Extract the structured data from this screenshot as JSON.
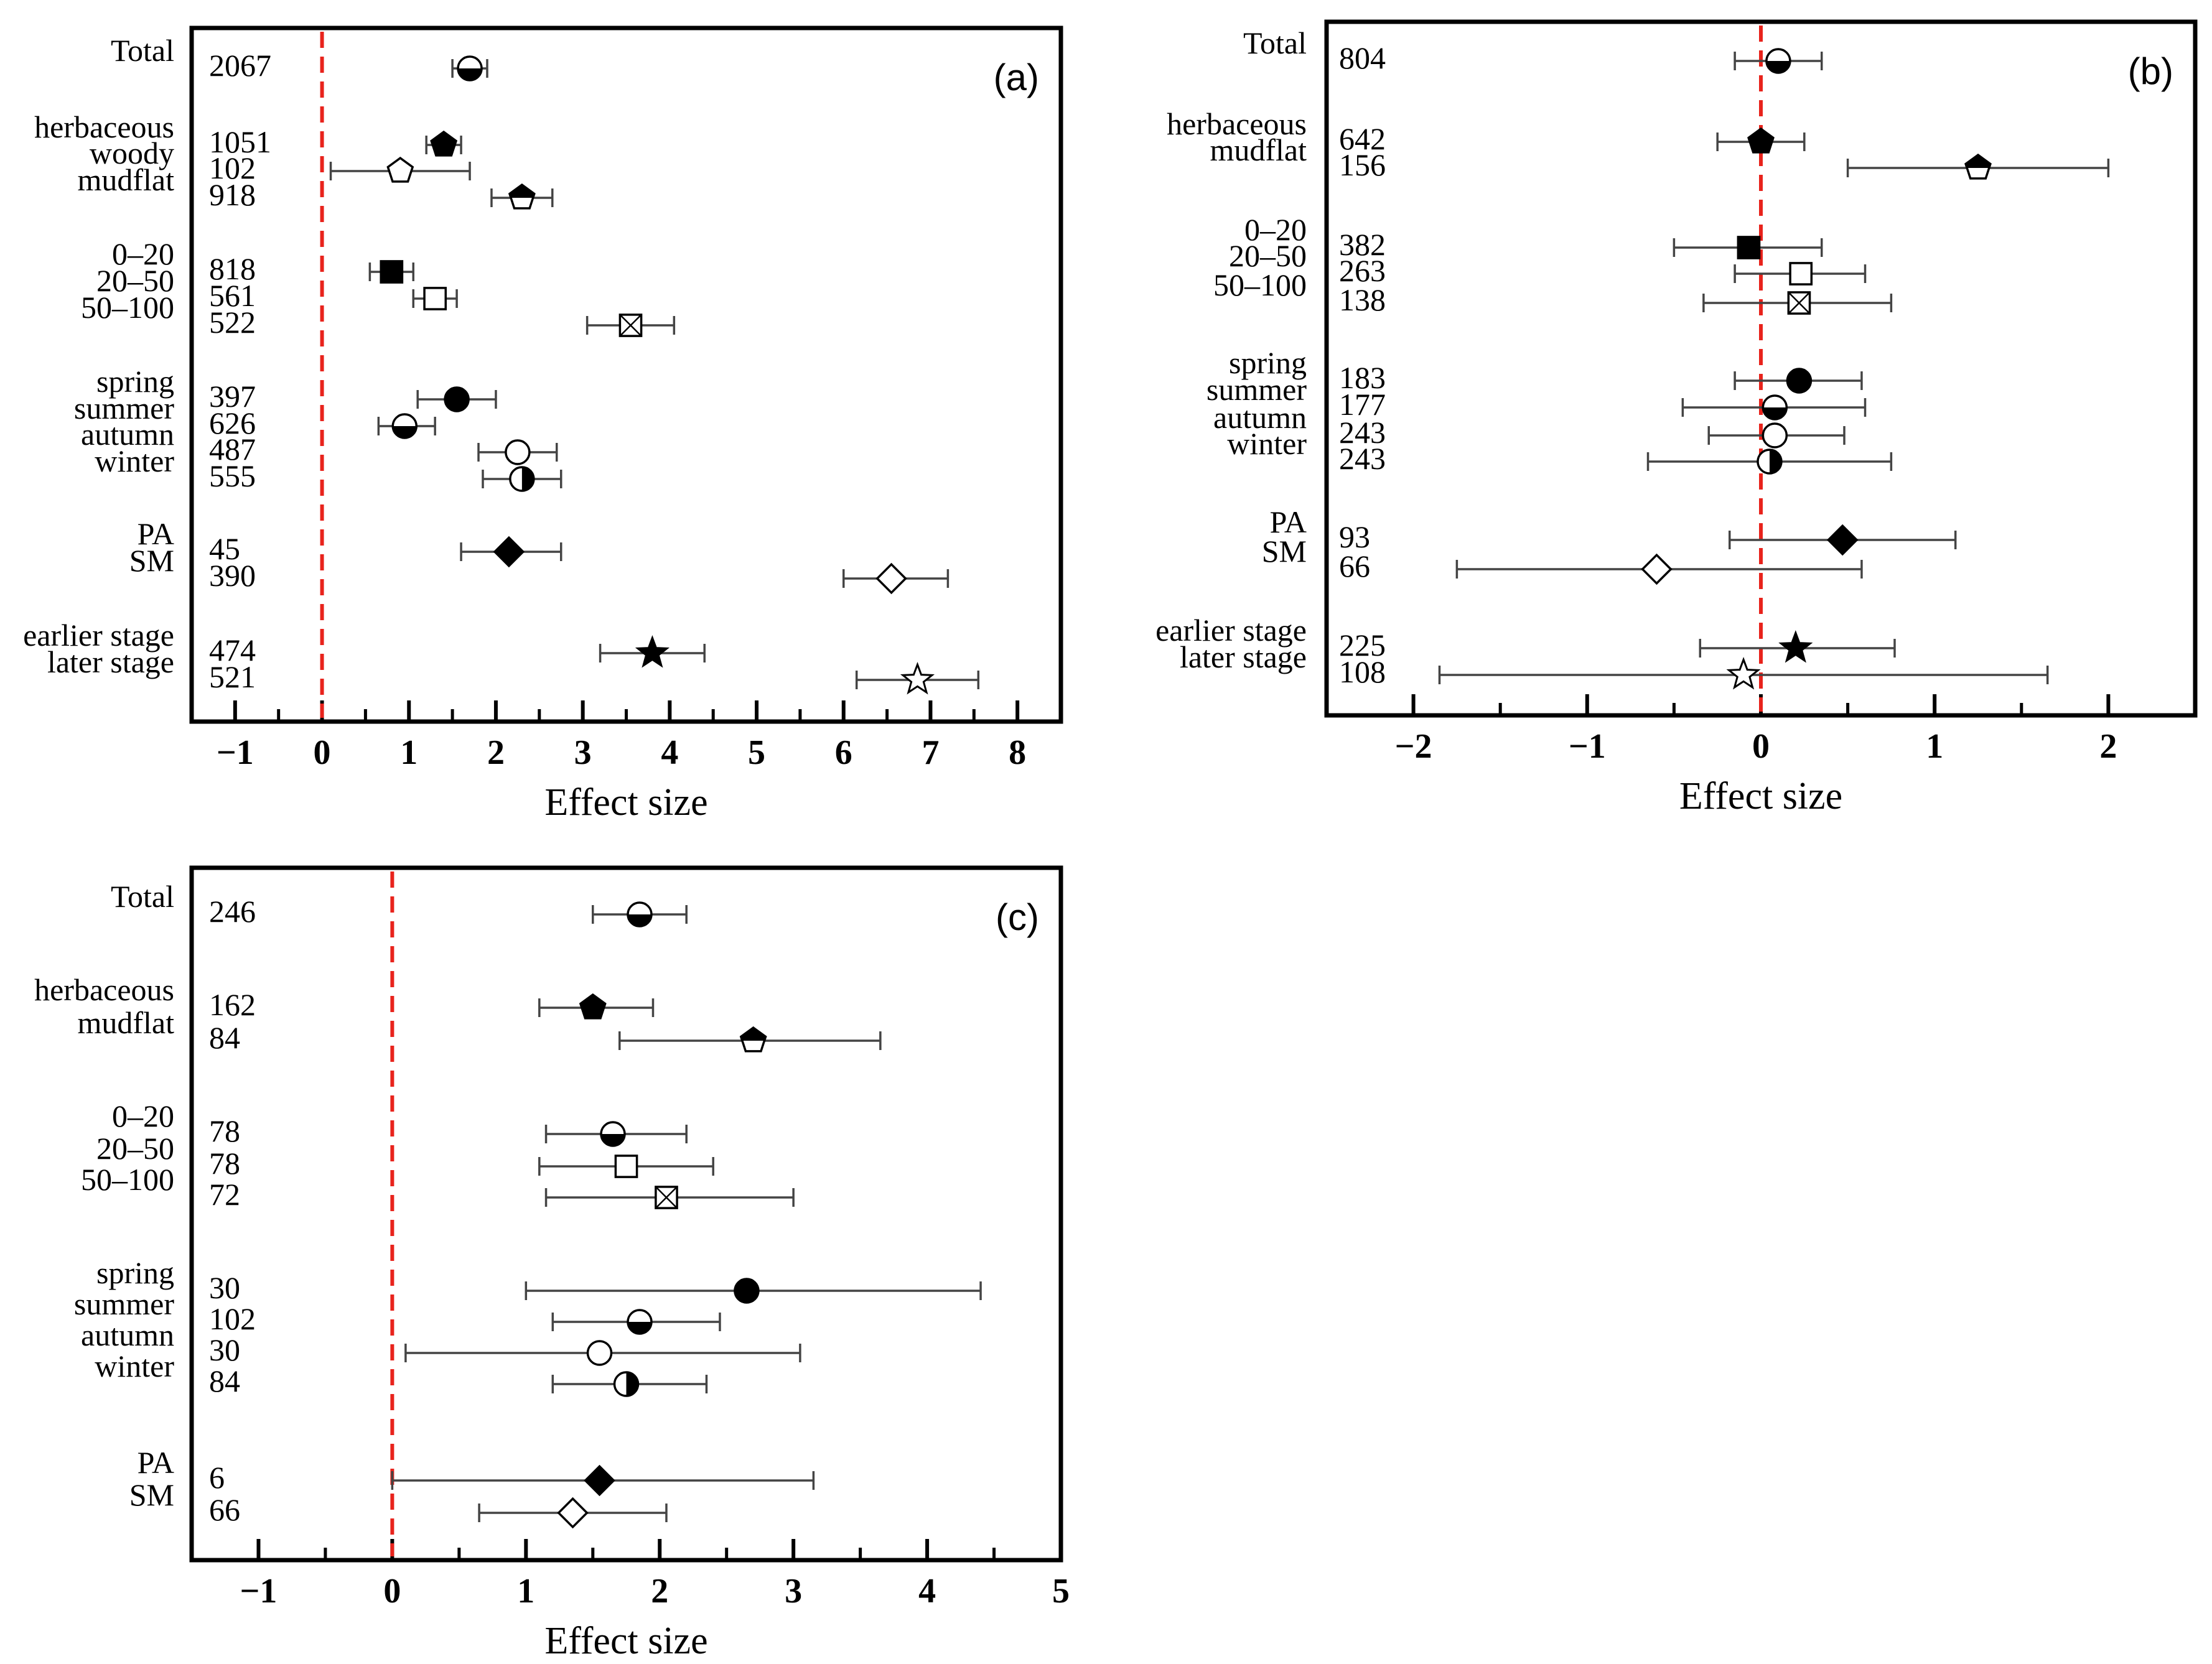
{
  "chart_data": [
    {
      "type": "forest",
      "panel_label": "(a)",
      "xlabel": "Effect size",
      "xlim": [
        -1.5,
        8.5
      ],
      "xticks": [
        -1,
        0,
        1,
        2,
        3,
        4,
        5,
        6,
        7,
        8
      ],
      "reference_line_x": 0,
      "rows": [
        {
          "label": "Total",
          "n": "2067",
          "mean": 1.7,
          "lo": 1.5,
          "hi": 1.9,
          "marker": "circle-half-h"
        },
        {
          "label": "herbaceous",
          "n": "1051",
          "mean": 1.4,
          "lo": 1.2,
          "hi": 1.6,
          "marker": "pentagon-filled"
        },
        {
          "label": "woody",
          "n": "102",
          "mean": 0.9,
          "lo": 0.1,
          "hi": 1.7,
          "marker": "pentagon-open"
        },
        {
          "label": "mudflat",
          "n": "918",
          "mean": 2.3,
          "lo": 1.95,
          "hi": 2.65,
          "marker": "pentagon-half"
        },
        {
          "label": "0–20",
          "n": "818",
          "mean": 0.8,
          "lo": 0.55,
          "hi": 1.05,
          "marker": "square-filled"
        },
        {
          "label": "20–50",
          "n": "561",
          "mean": 1.3,
          "lo": 1.05,
          "hi": 1.55,
          "marker": "square-open"
        },
        {
          "label": "50–100",
          "n": "522",
          "mean": 3.55,
          "lo": 3.05,
          "hi": 4.05,
          "marker": "square-x"
        },
        {
          "label": "spring",
          "n": "397",
          "mean": 1.55,
          "lo": 1.1,
          "hi": 2.0,
          "marker": "circle-filled"
        },
        {
          "label": "summer",
          "n": "626",
          "mean": 0.95,
          "lo": 0.65,
          "hi": 1.3,
          "marker": "circle-half-h"
        },
        {
          "label": "autumn",
          "n": "487",
          "mean": 2.25,
          "lo": 1.8,
          "hi": 2.7,
          "marker": "circle-open"
        },
        {
          "label": "winter",
          "n": "555",
          "mean": 2.3,
          "lo": 1.85,
          "hi": 2.75,
          "marker": "circle-half-v"
        },
        {
          "label": "PA",
          "n": "45",
          "mean": 2.15,
          "lo": 1.6,
          "hi": 2.75,
          "marker": "diamond-filled"
        },
        {
          "label": "SM",
          "n": "390",
          "mean": 6.55,
          "lo": 6.0,
          "hi": 7.2,
          "marker": "diamond-open"
        },
        {
          "label": "earlier stage",
          "n": "474",
          "mean": 3.8,
          "lo": 3.2,
          "hi": 4.4,
          "marker": "star-filled"
        },
        {
          "label": "later stage",
          "n": "521",
          "mean": 6.85,
          "lo": 6.15,
          "hi": 7.55,
          "marker": "star-open"
        }
      ]
    },
    {
      "type": "forest",
      "panel_label": "(b)",
      "xlabel": "Effect size",
      "xlim": [
        -2.5,
        2.5
      ],
      "xticks": [
        -2,
        -1,
        0,
        1,
        2
      ],
      "reference_line_x": 0,
      "rows": [
        {
          "label": "Total",
          "n": "804",
          "mean": 0.1,
          "lo": -0.15,
          "hi": 0.35,
          "marker": "circle-half-h"
        },
        {
          "label": "herbaceous",
          "n": "642",
          "mean": 0.0,
          "lo": -0.25,
          "hi": 0.25,
          "marker": "pentagon-filled"
        },
        {
          "label": "mudflat",
          "n": "156",
          "mean": 1.25,
          "lo": 0.5,
          "hi": 2.0,
          "marker": "pentagon-half"
        },
        {
          "label": "0–20",
          "n": "382",
          "mean": -0.07,
          "lo": -0.5,
          "hi": 0.35,
          "marker": "square-filled"
        },
        {
          "label": "20–50",
          "n": "263",
          "mean": 0.23,
          "lo": -0.15,
          "hi": 0.6,
          "marker": "square-open"
        },
        {
          "label": "50–100",
          "n": "138",
          "mean": 0.22,
          "lo": -0.33,
          "hi": 0.75,
          "marker": "square-x"
        },
        {
          "label": "spring",
          "n": "183",
          "mean": 0.22,
          "lo": -0.15,
          "hi": 0.58,
          "marker": "circle-filled"
        },
        {
          "label": "summer",
          "n": "177",
          "mean": 0.08,
          "lo": -0.45,
          "hi": 0.6,
          "marker": "circle-half-h"
        },
        {
          "label": "autumn",
          "n": "243",
          "mean": 0.08,
          "lo": -0.3,
          "hi": 0.48,
          "marker": "circle-open"
        },
        {
          "label": "winter",
          "n": "243",
          "mean": 0.05,
          "lo": -0.65,
          "hi": 0.75,
          "marker": "circle-half-v"
        },
        {
          "label": "PA",
          "n": "93",
          "mean": 0.47,
          "lo": -0.18,
          "hi": 1.12,
          "marker": "diamond-filled"
        },
        {
          "label": "SM",
          "n": "66",
          "mean": -0.6,
          "lo": -1.75,
          "hi": 0.58,
          "marker": "diamond-open"
        },
        {
          "label": "earlier stage",
          "n": "225",
          "mean": 0.2,
          "lo": -0.35,
          "hi": 0.77,
          "marker": "star-filled"
        },
        {
          "label": "later stage",
          "n": "108",
          "mean": -0.1,
          "lo": -1.85,
          "hi": 1.65,
          "marker": "star-open"
        }
      ]
    },
    {
      "type": "forest",
      "panel_label": "(c)",
      "xlabel": "Effect size",
      "xlim": [
        -1.5,
        5
      ],
      "xticks": [
        -1,
        0,
        1,
        2,
        3,
        4,
        5
      ],
      "reference_line_x": 0,
      "rows": [
        {
          "label": "Total",
          "n": "246",
          "mean": 1.85,
          "lo": 1.5,
          "hi": 2.2,
          "marker": "circle-half-h"
        },
        {
          "label": "herbaceous",
          "n": "162",
          "mean": 1.5,
          "lo": 1.1,
          "hi": 1.95,
          "marker": "pentagon-filled"
        },
        {
          "label": "mudflat",
          "n": "84",
          "mean": 2.7,
          "lo": 1.7,
          "hi": 3.65,
          "marker": "pentagon-half"
        },
        {
          "label": "0–20",
          "n": "78",
          "mean": 1.65,
          "lo": 1.15,
          "hi": 2.2,
          "marker": "circle-half-h"
        },
        {
          "label": "20–50",
          "n": "78",
          "mean": 1.75,
          "lo": 1.1,
          "hi": 2.4,
          "marker": "square-open"
        },
        {
          "label": "50–100",
          "n": "72",
          "mean": 2.05,
          "lo": 1.15,
          "hi": 3.0,
          "marker": "square-x"
        },
        {
          "label": "spring",
          "n": "30",
          "mean": 2.65,
          "lo": 1.0,
          "hi": 4.4,
          "marker": "circle-filled"
        },
        {
          "label": "summer",
          "n": "102",
          "mean": 1.85,
          "lo": 1.2,
          "hi": 2.45,
          "marker": "circle-half-h"
        },
        {
          "label": "autumn",
          "n": "30",
          "mean": 1.55,
          "lo": 0.1,
          "hi": 3.05,
          "marker": "circle-open"
        },
        {
          "label": "winter",
          "n": "84",
          "mean": 1.75,
          "lo": 1.2,
          "hi": 2.35,
          "marker": "circle-half-v"
        },
        {
          "label": "PA",
          "n": "6",
          "mean": 1.55,
          "lo": 0.0,
          "hi": 3.15,
          "marker": "diamond-filled"
        },
        {
          "label": "SM",
          "n": "66",
          "mean": 1.35,
          "lo": 0.65,
          "hi": 2.05,
          "marker": "diamond-open"
        }
      ]
    }
  ]
}
